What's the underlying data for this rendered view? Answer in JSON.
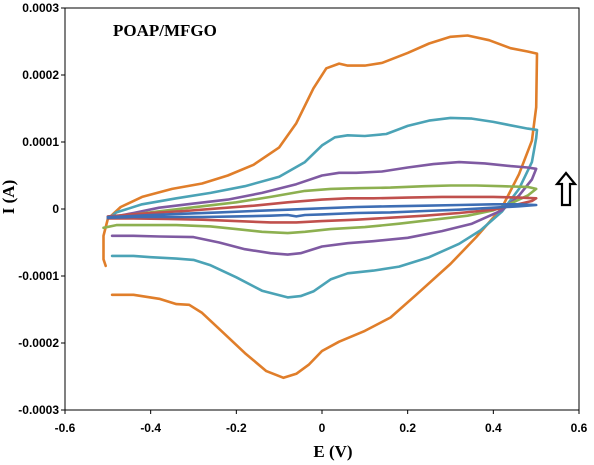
{
  "chart_data": {
    "type": "line",
    "title": "",
    "annotation": "POAP/MFGO",
    "xlabel": "E (V)",
    "ylabel": "I (A)",
    "xlim": [
      -0.6,
      0.6
    ],
    "ylim": [
      -0.0003,
      0.0003
    ],
    "x_ticks": [
      "-0.6",
      "-0.4",
      "-0.2",
      "0",
      "0.2",
      "0.4",
      "0.6"
    ],
    "y_ticks": [
      "0.0003",
      "0.0002",
      "0.0001",
      "0",
      "-0.0001",
      "-0.0002",
      "-0.0003"
    ],
    "grid": false,
    "legend": "none",
    "arrow_direction": "up",
    "series": [
      {
        "color": "#E07E2A",
        "points": [
          [
            -0.49,
            -0.000128
          ],
          [
            -0.44,
            -0.000128
          ],
          [
            -0.38,
            -0.000134
          ],
          [
            -0.34,
            -0.000142
          ],
          [
            -0.31,
            -0.000143
          ],
          [
            -0.28,
            -0.000155
          ],
          [
            -0.23,
            -0.000185
          ],
          [
            -0.18,
            -0.000215
          ],
          [
            -0.13,
            -0.000242
          ],
          [
            -0.09,
            -0.000252
          ],
          [
            -0.06,
            -0.000246
          ],
          [
            -0.03,
            -0.000232
          ],
          [
            0.0,
            -0.000212
          ],
          [
            0.04,
            -0.000198
          ],
          [
            0.1,
            -0.000182
          ],
          [
            0.16,
            -0.000162
          ],
          [
            0.22,
            -0.000128
          ],
          [
            0.3,
            -8.2e-05
          ],
          [
            0.36,
            -4.2e-05
          ],
          [
            0.42,
            2e-06
          ],
          [
            0.46,
            5.2e-05
          ],
          [
            0.49,
            0.000102
          ],
          [
            0.5,
            0.000152
          ],
          [
            0.502,
            0.000232
          ],
          [
            0.48,
            0.000235
          ],
          [
            0.44,
            0.00024
          ],
          [
            0.39,
            0.000252
          ],
          [
            0.34,
            0.000259
          ],
          [
            0.3,
            0.000257
          ],
          [
            0.25,
            0.000247
          ],
          [
            0.2,
            0.000233
          ],
          [
            0.14,
            0.000218
          ],
          [
            0.1,
            0.000214
          ],
          [
            0.06,
            0.000214
          ],
          [
            0.04,
            0.000217
          ],
          [
            0.01,
            0.00021
          ],
          [
            -0.02,
            0.00018
          ],
          [
            -0.06,
            0.000128
          ],
          [
            -0.1,
            9.2e-05
          ],
          [
            -0.16,
            6.6e-05
          ],
          [
            -0.22,
            5e-05
          ],
          [
            -0.28,
            3.8e-05
          ],
          [
            -0.35,
            3e-05
          ],
          [
            -0.42,
            1.8e-05
          ],
          [
            -0.47,
            3e-06
          ],
          [
            -0.5,
            -1.5e-05
          ],
          [
            -0.51,
            -4e-05
          ],
          [
            -0.51,
            -7.5e-05
          ],
          [
            -0.505,
            -8.5e-05
          ]
        ]
      },
      {
        "color": "#4BA3B6",
        "points": [
          [
            -0.49,
            -7e-05
          ],
          [
            -0.44,
            -7e-05
          ],
          [
            -0.4,
            -7.2e-05
          ],
          [
            -0.34,
            -7.4e-05
          ],
          [
            -0.3,
            -7.6e-05
          ],
          [
            -0.26,
            -8.4e-05
          ],
          [
            -0.2,
            -0.000102
          ],
          [
            -0.14,
            -0.000122
          ],
          [
            -0.08,
            -0.000132
          ],
          [
            -0.05,
            -0.00013
          ],
          [
            -0.02,
            -0.000123
          ],
          [
            0.02,
            -0.000105
          ],
          [
            0.06,
            -9.6e-05
          ],
          [
            0.12,
            -9.2e-05
          ],
          [
            0.18,
            -8.6e-05
          ],
          [
            0.25,
            -7.2e-05
          ],
          [
            0.32,
            -5.2e-05
          ],
          [
            0.37,
            -3.2e-05
          ],
          [
            0.42,
            -4e-06
          ],
          [
            0.46,
            3e-05
          ],
          [
            0.49,
            7e-05
          ],
          [
            0.5,
            0.000106
          ],
          [
            0.502,
            0.000118
          ],
          [
            0.48,
            0.00012
          ],
          [
            0.44,
            0.000125
          ],
          [
            0.4,
            0.00013
          ],
          [
            0.35,
            0.000135
          ],
          [
            0.3,
            0.000136
          ],
          [
            0.25,
            0.000132
          ],
          [
            0.2,
            0.000124
          ],
          [
            0.15,
            0.000112
          ],
          [
            0.1,
            0.000109
          ],
          [
            0.06,
            0.00011
          ],
          [
            0.03,
            0.000107
          ],
          [
            0.0,
            9.5e-05
          ],
          [
            -0.04,
            7e-05
          ],
          [
            -0.1,
            4.8e-05
          ],
          [
            -0.18,
            3.4e-05
          ],
          [
            -0.26,
            2.4e-05
          ],
          [
            -0.34,
            1.6e-05
          ],
          [
            -0.42,
            7e-06
          ],
          [
            -0.48,
            -5e-06
          ],
          [
            -0.5,
            -1.5e-05
          ]
        ]
      },
      {
        "color": "#7F5AA2",
        "points": [
          [
            -0.49,
            -4e-05
          ],
          [
            -0.44,
            -4e-05
          ],
          [
            -0.38,
            -4.1e-05
          ],
          [
            -0.3,
            -4.2e-05
          ],
          [
            -0.24,
            -5e-05
          ],
          [
            -0.18,
            -6e-05
          ],
          [
            -0.12,
            -6.6e-05
          ],
          [
            -0.08,
            -6.8e-05
          ],
          [
            -0.05,
            -6.6e-05
          ],
          [
            0.0,
            -5.6e-05
          ],
          [
            0.06,
            -5.1e-05
          ],
          [
            0.12,
            -4.8e-05
          ],
          [
            0.2,
            -4.3e-05
          ],
          [
            0.28,
            -3.3e-05
          ],
          [
            0.35,
            -2.2e-05
          ],
          [
            0.42,
            -2e-06
          ],
          [
            0.46,
            2e-05
          ],
          [
            0.49,
            4.4e-05
          ],
          [
            0.5,
            6e-05
          ],
          [
            0.48,
            6.2e-05
          ],
          [
            0.44,
            6.4e-05
          ],
          [
            0.38,
            6.8e-05
          ],
          [
            0.32,
            7e-05
          ],
          [
            0.26,
            6.7e-05
          ],
          [
            0.2,
            6.2e-05
          ],
          [
            0.14,
            5.6e-05
          ],
          [
            0.08,
            5.4e-05
          ],
          [
            0.04,
            5.4e-05
          ],
          [
            0.0,
            5e-05
          ],
          [
            -0.06,
            3.7e-05
          ],
          [
            -0.14,
            2.4e-05
          ],
          [
            -0.22,
            1.4e-05
          ],
          [
            -0.3,
            8e-06
          ],
          [
            -0.38,
            2e-06
          ],
          [
            -0.44,
            -6e-06
          ],
          [
            -0.49,
            -1.2e-05
          ]
        ]
      },
      {
        "color": "#8DB050",
        "points": [
          [
            -0.51,
            -2.8e-05
          ],
          [
            -0.48,
            -2.4e-05
          ],
          [
            -0.42,
            -2.4e-05
          ],
          [
            -0.34,
            -2.4e-05
          ],
          [
            -0.26,
            -2.6e-05
          ],
          [
            -0.2,
            -3e-05
          ],
          [
            -0.14,
            -3.4e-05
          ],
          [
            -0.08,
            -3.6e-05
          ],
          [
            -0.04,
            -3.4e-05
          ],
          [
            0.02,
            -3e-05
          ],
          [
            0.1,
            -2.7e-05
          ],
          [
            0.18,
            -2.2e-05
          ],
          [
            0.26,
            -1.6e-05
          ],
          [
            0.34,
            -1e-05
          ],
          [
            0.4,
            -2e-06
          ],
          [
            0.44,
            8e-06
          ],
          [
            0.48,
            2e-05
          ],
          [
            0.5,
            3e-05
          ],
          [
            0.48,
            3.3e-05
          ],
          [
            0.42,
            3.4e-05
          ],
          [
            0.36,
            3.5e-05
          ],
          [
            0.3,
            3.5e-05
          ],
          [
            0.24,
            3.4e-05
          ],
          [
            0.16,
            3.2e-05
          ],
          [
            0.08,
            3.1e-05
          ],
          [
            0.02,
            3e-05
          ],
          [
            -0.04,
            2.7e-05
          ],
          [
            -0.12,
            1.8e-05
          ],
          [
            -0.2,
            1e-05
          ],
          [
            -0.28,
            4e-06
          ],
          [
            -0.36,
            -2e-06
          ],
          [
            -0.44,
            -8e-06
          ],
          [
            -0.5,
            -1.4e-05
          ]
        ]
      },
      {
        "color": "#C0504D",
        "points": [
          [
            -0.5,
            -1.4e-05
          ],
          [
            -0.44,
            -1.4e-05
          ],
          [
            -0.36,
            -1.5e-05
          ],
          [
            -0.28,
            -1.6e-05
          ],
          [
            -0.2,
            -1.8e-05
          ],
          [
            -0.12,
            -2e-05
          ],
          [
            -0.06,
            -2e-05
          ],
          [
            0.0,
            -1.8e-05
          ],
          [
            0.08,
            -1.6e-05
          ],
          [
            0.16,
            -1.3e-05
          ],
          [
            0.24,
            -1e-05
          ],
          [
            0.32,
            -6e-06
          ],
          [
            0.4,
            -1e-06
          ],
          [
            0.45,
            6e-06
          ],
          [
            0.49,
            1.2e-05
          ],
          [
            0.5,
            1.6e-05
          ],
          [
            0.46,
            1.7e-05
          ],
          [
            0.4,
            1.8e-05
          ],
          [
            0.34,
            1.8e-05
          ],
          [
            0.28,
            1.8e-05
          ],
          [
            0.2,
            1.7e-05
          ],
          [
            0.12,
            1.6e-05
          ],
          [
            0.06,
            1.6e-05
          ],
          [
            0.0,
            1.4e-05
          ],
          [
            -0.08,
            1e-05
          ],
          [
            -0.16,
            5e-06
          ],
          [
            -0.24,
            1e-06
          ],
          [
            -0.32,
            -3e-06
          ],
          [
            -0.4,
            -6e-06
          ],
          [
            -0.46,
            -9e-06
          ],
          [
            -0.5,
            -1.1e-05
          ]
        ]
      },
      {
        "color": "#3E6EB4",
        "points": [
          [
            -0.5,
            -1.3e-05
          ],
          [
            -0.44,
            -1.2e-05
          ],
          [
            -0.36,
            -1.2e-05
          ],
          [
            -0.28,
            -1.2e-05
          ],
          [
            -0.2,
            -1.1e-05
          ],
          [
            -0.12,
            -1e-05
          ],
          [
            -0.08,
            -9e-06
          ],
          [
            -0.06,
            -1.1e-05
          ],
          [
            -0.04,
            -9e-06
          ],
          [
            0.0,
            -8e-06
          ],
          [
            0.08,
            -6e-06
          ],
          [
            0.16,
            -5e-06
          ],
          [
            0.24,
            -3e-06
          ],
          [
            0.32,
            -1e-06
          ],
          [
            0.4,
            2e-06
          ],
          [
            0.46,
            4e-06
          ],
          [
            0.5,
            6e-06
          ],
          [
            0.46,
            7e-06
          ],
          [
            0.4,
            7e-06
          ],
          [
            0.32,
            6e-06
          ],
          [
            0.24,
            5e-06
          ],
          [
            0.16,
            4e-06
          ],
          [
            0.08,
            3e-06
          ],
          [
            0.0,
            1e-06
          ],
          [
            -0.08,
            -1e-06
          ],
          [
            -0.16,
            -3e-06
          ],
          [
            -0.24,
            -5e-06
          ],
          [
            -0.32,
            -7e-06
          ],
          [
            -0.4,
            -9e-06
          ],
          [
            -0.46,
            -1.1e-05
          ],
          [
            -0.5,
            -1.2e-05
          ]
        ]
      }
    ]
  }
}
